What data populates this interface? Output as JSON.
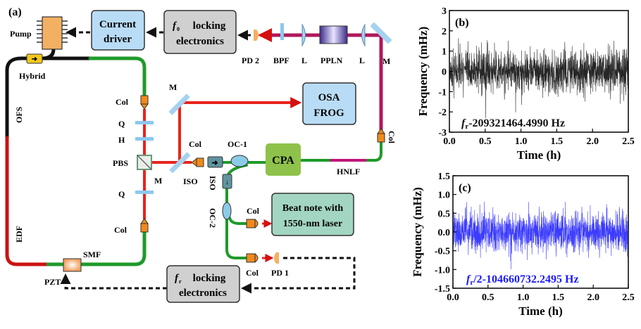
{
  "panel_a": {
    "label": "(a)",
    "boxes": {
      "current_driver": [
        "Current",
        "driver"
      ],
      "f0_locking": [
        "locking",
        "electronics"
      ],
      "f0_symbol": "f",
      "f0_sub": "0",
      "osa_frog": [
        "OSA",
        "FROG"
      ],
      "cpa": "CPA",
      "beat_note": [
        "Beat note with",
        "1550-nm laser"
      ],
      "fr_locking": [
        "locking",
        "electronics"
      ],
      "fr_symbol": "f",
      "fr_sub": "r"
    },
    "labels": {
      "pump": "Pump",
      "hybrid": "Hybrid",
      "ofs": "OFS",
      "edf": "EDF",
      "smf": "SMF",
      "pzt": "PZT",
      "col_top": "Col",
      "q_top": "Q",
      "h": "H",
      "pbs": "PBS",
      "q_bottom": "Q",
      "col_bottom": "Col",
      "m_top": "M",
      "m_bottom": "M",
      "col_iso": "Col",
      "iso_1": "ISO",
      "oc1": "OC-1",
      "hnlf": "HNLF",
      "iso_2": "ISO",
      "oc2": "OC-2",
      "col_beat": "Col",
      "col_pd1": "Col",
      "pd1": "PD 1",
      "pd2": "PD 2",
      "bpf": "BPF",
      "lens_1": "L",
      "ppln": "PPLN",
      "lens_2": "L",
      "m_right": "M",
      "col_right": "Col"
    },
    "colors": {
      "fiber_black": "#111111",
      "fiber_green": "#1f9a2a",
      "fiber_red": "#cc1111",
      "beam_red": "#e8241c",
      "beam_magenta": "#b0185a",
      "blue_box": "#b9dcf6",
      "gray_box": "#d0d0d0",
      "green_box": "#8fc24a",
      "teal_box": "#a3d6c2",
      "orange_component": "#f08a1c"
    }
  },
  "chart_data": [
    {
      "panel_label": "(b)",
      "type": "line",
      "annotation_symbol": "f",
      "annotation_sub": "r",
      "annotation_text": "-209321464.4990 Hz",
      "xlabel": "Time (h)",
      "ylabel": "Frequency (mHz)",
      "xlim": [
        0,
        2.5
      ],
      "ylim": [
        -3,
        3
      ],
      "xticks": [
        "0.0",
        "0.5",
        "1.0",
        "1.5",
        "2.0",
        "2.5"
      ],
      "yticks": [
        "-3",
        "-2",
        "-1",
        "0",
        "1",
        "2",
        "3"
      ],
      "typical_envelope": [
        -1.0,
        1.0
      ],
      "peak_range": [
        -2.3,
        2.3
      ],
      "color": "#000000"
    },
    {
      "panel_label": "(c)",
      "type": "line",
      "annotation_symbol": "f",
      "annotation_sub": "r",
      "annotation_text": "/2-104660732.2495 Hz",
      "xlabel": "Time (h)",
      "ylabel": "Frequency (mHz)",
      "xlim": [
        0,
        2.5
      ],
      "ylim": [
        -1.5,
        1.5
      ],
      "xticks": [
        "0.0",
        "0.5",
        "1.0",
        "1.5",
        "2.0",
        "2.5"
      ],
      "yticks": [
        "-1.5",
        "-1.0",
        "-0.5",
        "0.0",
        "0.5",
        "1.0",
        "1.5"
      ],
      "typical_envelope": [
        -0.5,
        0.5
      ],
      "peak_range": [
        -1.0,
        0.8
      ],
      "color": "#1a1aff"
    }
  ]
}
